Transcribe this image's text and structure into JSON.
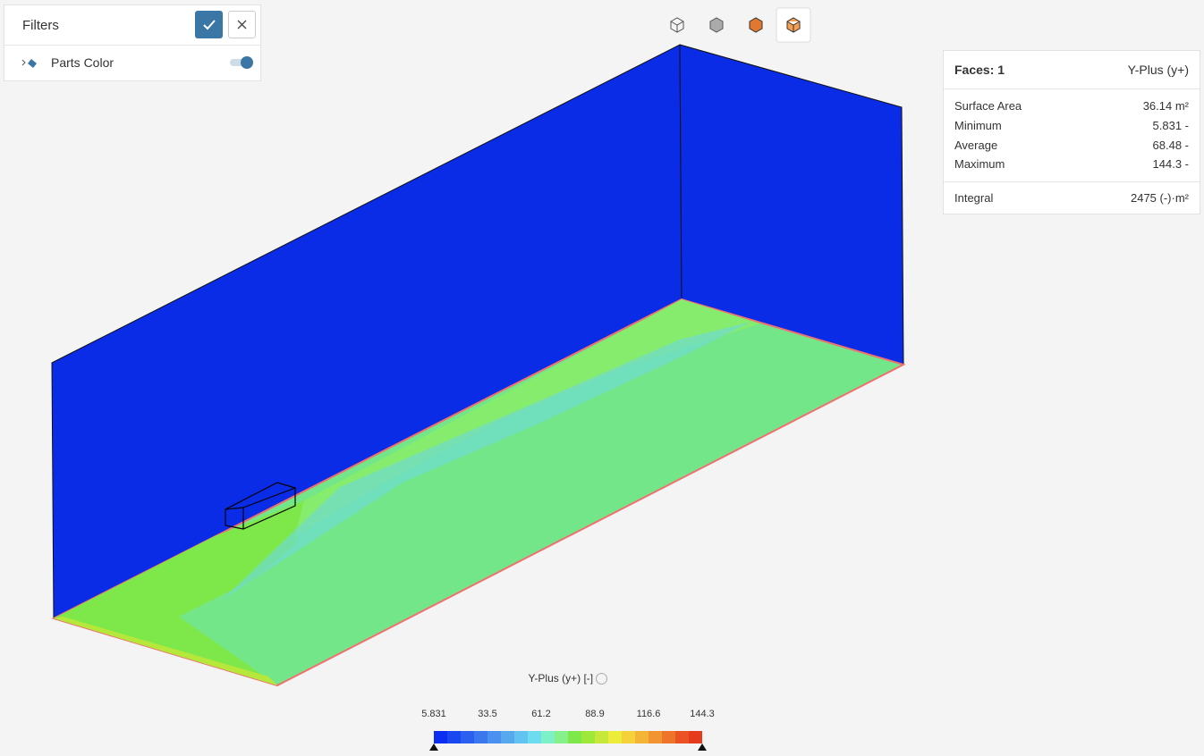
{
  "filters": {
    "title": "Filters",
    "items": [
      {
        "label": "Parts Color"
      }
    ]
  },
  "stats": {
    "header": {
      "left": "Faces: 1",
      "right": "Y-Plus (y+)"
    },
    "rows": [
      [
        "Surface Area",
        "36.14 m²"
      ],
      [
        "Minimum",
        "5.831 -"
      ],
      [
        "Average",
        "68.48 -"
      ],
      [
        "Maximum",
        "144.3 -"
      ]
    ],
    "integral": [
      "Integral",
      "2475 (-)·m²"
    ]
  },
  "legend": {
    "title": "Y-Plus (y+) [-]",
    "ticks": [
      "5.831",
      "33.5",
      "61.2",
      "88.9",
      "116.6",
      "144.3"
    ]
  }
}
